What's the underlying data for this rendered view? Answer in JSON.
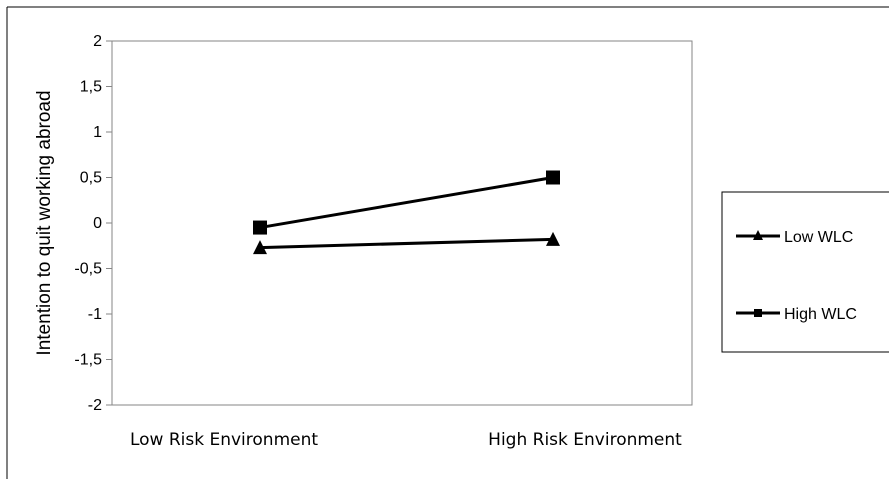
{
  "chart_data": {
    "type": "line",
    "title": "",
    "xlabel": "",
    "ylabel": "Intention to quit working abroad",
    "categories": [
      "Low Risk Environment",
      "High Risk Environment"
    ],
    "ylim": [
      -2,
      2
    ],
    "yticks": [
      2,
      1.5,
      1,
      0.5,
      0,
      -0.5,
      -1,
      -1.5,
      -2
    ],
    "ytick_labels": [
      "2",
      "1,5",
      "1",
      "0,5",
      "0",
      "-0,5",
      "-1",
      "-1,5",
      "-2"
    ],
    "grid": false,
    "legend_position": "right",
    "series": [
      {
        "name": "Low WLC",
        "marker": "triangle",
        "color": "#000000",
        "values": [
          -0.27,
          -0.18
        ]
      },
      {
        "name": "High WLC",
        "marker": "square",
        "color": "#000000",
        "values": [
          -0.05,
          0.5
        ]
      }
    ]
  }
}
